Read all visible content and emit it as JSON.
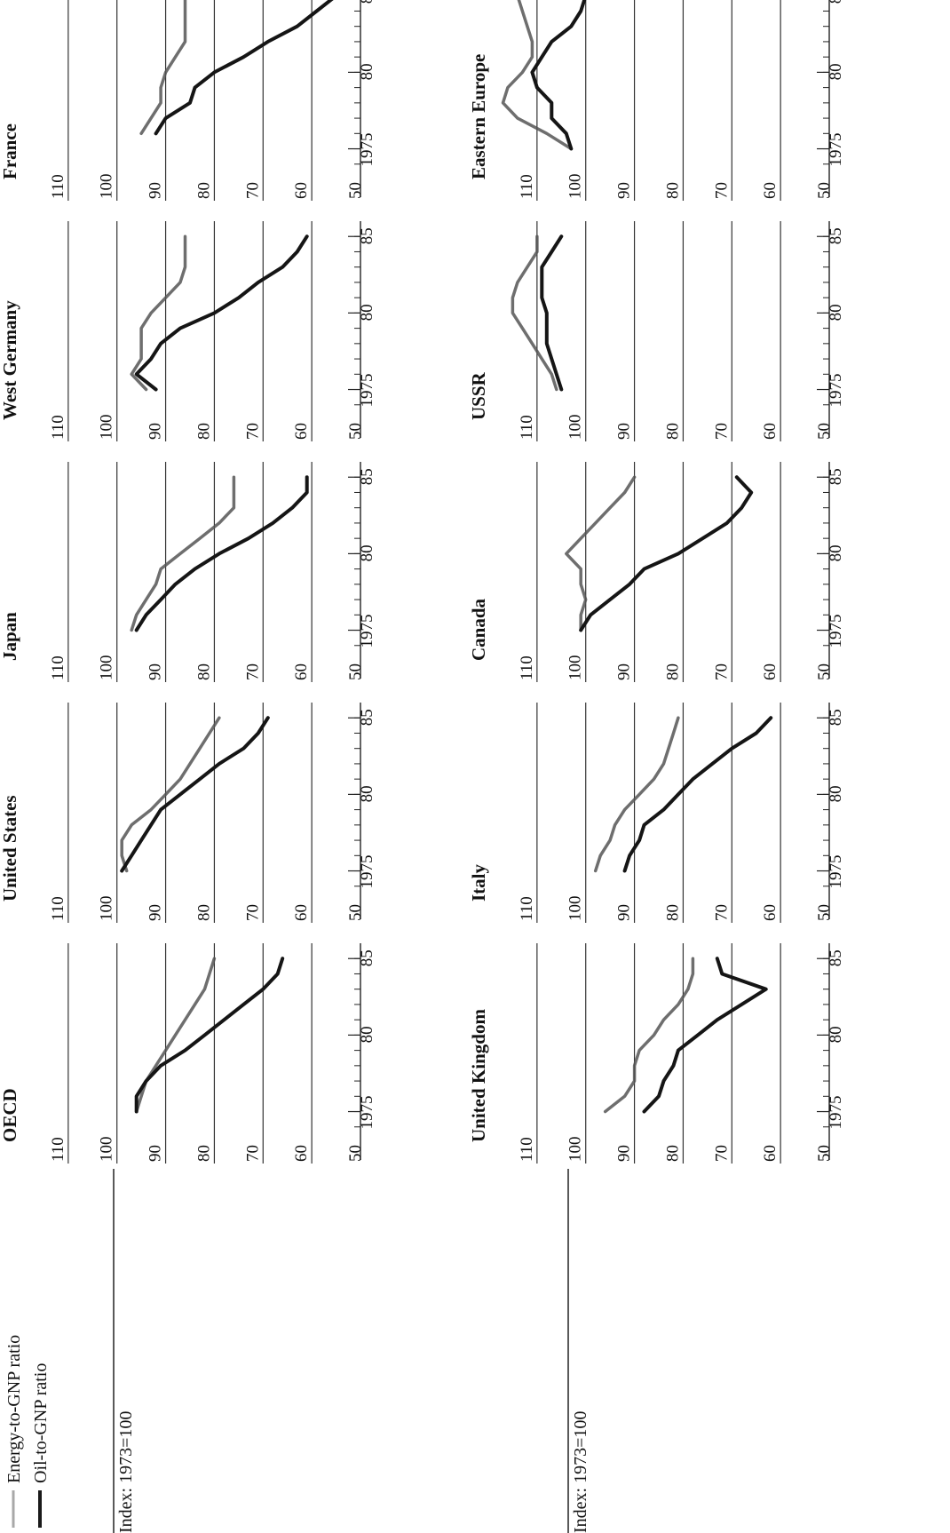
{
  "index_label": "Index: 1973=100",
  "legend": [
    {
      "label": "Energy-to-GNP ratio",
      "color": "#a8a8a8"
    },
    {
      "label": "Oil-to-GNP ratio",
      "color": "#1a1a1a"
    }
  ],
  "x_axis": {
    "tick_labels": [
      "1975",
      "80",
      "85"
    ],
    "minor_ticks": [
      1974,
      1975,
      1976,
      1977,
      1978,
      1979,
      1980,
      1981,
      1982,
      1983,
      1984,
      1985
    ]
  },
  "y_axis": {
    "corner_label": "50",
    "gridlines": [
      110,
      100,
      90,
      80,
      70,
      60
    ]
  },
  "chart_data": [
    {
      "type": "line",
      "title": "OECD",
      "x": [
        1975,
        1976,
        1977,
        1978,
        1979,
        1980,
        1981,
        1982,
        1983,
        1984,
        1985
      ],
      "ylim": [
        50,
        120
      ],
      "xlim": [
        1973,
        1986
      ],
      "series": [
        {
          "name": "Energy-to-GNP ratio",
          "values": [
            96,
            95,
            94,
            92,
            90,
            88,
            86,
            84,
            82,
            81,
            80
          ]
        },
        {
          "name": "Oil-to-GNP ratio",
          "values": [
            96,
            96,
            94,
            91,
            86,
            82,
            78,
            74,
            70,
            67,
            66
          ]
        }
      ]
    },
    {
      "type": "line",
      "title": "United States",
      "x": [
        1975,
        1976,
        1977,
        1978,
        1979,
        1980,
        1981,
        1982,
        1983,
        1984,
        1985
      ],
      "ylim": [
        50,
        120
      ],
      "xlim": [
        1973,
        1986
      ],
      "series": [
        {
          "name": "Energy-to-GNP ratio",
          "values": [
            98,
            99,
            99,
            97,
            93,
            90,
            87,
            85,
            83,
            81,
            79
          ]
        },
        {
          "name": "Oil-to-GNP ratio",
          "values": [
            99,
            97,
            95,
            93,
            91,
            87,
            83,
            79,
            74,
            71,
            69
          ]
        }
      ]
    },
    {
      "type": "line",
      "title": "Japan",
      "x": [
        1975,
        1976,
        1977,
        1978,
        1979,
        1980,
        1981,
        1982,
        1983,
        1984,
        1985
      ],
      "ylim": [
        50,
        120
      ],
      "xlim": [
        1973,
        1986
      ],
      "series": [
        {
          "name": "Energy-to-GNP ratio",
          "values": [
            97,
            96,
            94,
            92,
            91,
            87,
            83,
            79,
            76,
            76,
            76
          ]
        },
        {
          "name": "Oil-to-GNP ratio",
          "values": [
            96,
            94,
            91,
            88,
            84,
            79,
            73,
            68,
            64,
            61,
            61
          ]
        }
      ]
    },
    {
      "type": "line",
      "title": "West Germany",
      "x": [
        1975,
        1976,
        1977,
        1978,
        1979,
        1980,
        1981,
        1982,
        1983,
        1984,
        1985
      ],
      "ylim": [
        50,
        120
      ],
      "xlim": [
        1973,
        1986
      ],
      "series": [
        {
          "name": "Energy-to-GNP ratio",
          "values": [
            94,
            97,
            95,
            95,
            95,
            93,
            90,
            87,
            86,
            86,
            86
          ]
        },
        {
          "name": "Oil-to-GNP ratio",
          "values": [
            92,
            96,
            93,
            91,
            87,
            80,
            75,
            71,
            66,
            63,
            61
          ]
        }
      ]
    },
    {
      "type": "line",
      "title": "France",
      "x": [
        1976,
        1977,
        1978,
        1979,
        1980,
        1981,
        1982,
        1983,
        1984,
        1985
      ],
      "ylim": [
        50,
        120
      ],
      "xlim": [
        1973,
        1986
      ],
      "series": [
        {
          "name": "Energy-to-GNP ratio",
          "values": [
            95,
            93,
            91,
            91,
            90,
            88,
            86,
            86,
            86,
            86
          ]
        },
        {
          "name": "Oil-to-GNP ratio",
          "values": [
            92,
            90,
            85,
            84,
            80,
            74,
            69,
            63,
            59,
            55
          ]
        }
      ]
    },
    {
      "type": "line",
      "title": "United Kingdom",
      "x": [
        1975,
        1976,
        1977,
        1978,
        1979,
        1980,
        1981,
        1982,
        1983,
        1984,
        1985
      ],
      "ylim": [
        50,
        120
      ],
      "xlim": [
        1973,
        1986
      ],
      "series": [
        {
          "name": "Energy-to-GNP ratio",
          "values": [
            96,
            92,
            90,
            90,
            89,
            86,
            84,
            81,
            79,
            78,
            78
          ]
        },
        {
          "name": "Oil-to-GNP ratio",
          "values": [
            88,
            85,
            84,
            82,
            81,
            77,
            73,
            68,
            63,
            72,
            73
          ]
        }
      ]
    },
    {
      "type": "line",
      "title": "Italy",
      "x": [
        1975,
        1976,
        1977,
        1978,
        1979,
        1980,
        1981,
        1982,
        1983,
        1984,
        1985
      ],
      "ylim": [
        50,
        120
      ],
      "xlim": [
        1973,
        1986
      ],
      "series": [
        {
          "name": "Energy-to-GNP ratio",
          "values": [
            98,
            97,
            95,
            94,
            92,
            89,
            86,
            84,
            83,
            82,
            81
          ]
        },
        {
          "name": "Oil-to-GNP ratio",
          "values": [
            92,
            91,
            89,
            88,
            84,
            81,
            78,
            74,
            70,
            65,
            62
          ]
        }
      ]
    },
    {
      "type": "line",
      "title": "Canada",
      "x": [
        1975,
        1976,
        1977,
        1978,
        1979,
        1980,
        1981,
        1982,
        1983,
        1984,
        1985
      ],
      "ylim": [
        50,
        120
      ],
      "xlim": [
        1973,
        1986
      ],
      "series": [
        {
          "name": "Energy-to-GNP ratio",
          "values": [
            101,
            101,
            100,
            101,
            101,
            104,
            101,
            98,
            95,
            92,
            90
          ]
        },
        {
          "name": "Oil-to-GNP ratio",
          "values": [
            101,
            99,
            95,
            91,
            88,
            81,
            76,
            71,
            68,
            66,
            69
          ]
        }
      ]
    },
    {
      "type": "line",
      "title": "USSR",
      "x": [
        1975,
        1976,
        1977,
        1978,
        1979,
        1980,
        1981,
        1982,
        1983,
        1984,
        1985
      ],
      "ylim": [
        50,
        120
      ],
      "xlim": [
        1973,
        1986
      ],
      "series": [
        {
          "name": "Energy-to-GNP ratio",
          "values": [
            106,
            107,
            109,
            111,
            113,
            115,
            115,
            114,
            112,
            110,
            110
          ]
        },
        {
          "name": "Oil-to-GNP ratio",
          "values": [
            105,
            106,
            107,
            108,
            108,
            108,
            109,
            109,
            109,
            107,
            105
          ]
        }
      ]
    },
    {
      "type": "line",
      "title": "Eastern Europe",
      "x": [
        1975,
        1976,
        1977,
        1978,
        1979,
        1980,
        1981,
        1982,
        1983,
        1984,
        1985
      ],
      "ylim": [
        50,
        120
      ],
      "xlim": [
        1973,
        1986
      ],
      "series": [
        {
          "name": "Energy-to-GNP ratio",
          "values": [
            103,
            108,
            114,
            117,
            116,
            113,
            111,
            111,
            112,
            113,
            114
          ]
        },
        {
          "name": "Oil-to-GNP ratio",
          "values": [
            103,
            104,
            107,
            107,
            110,
            111,
            109,
            107,
            103,
            101,
            100
          ]
        }
      ]
    }
  ]
}
